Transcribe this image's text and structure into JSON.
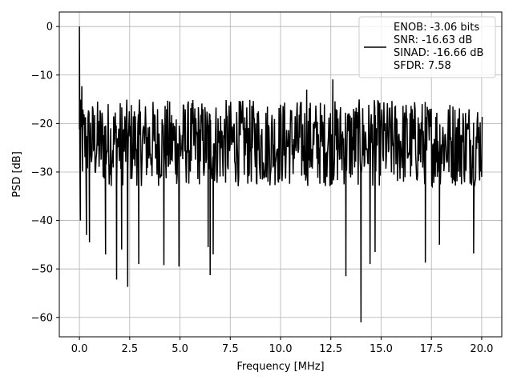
{
  "chart_data": {
    "type": "line",
    "title": "",
    "xlabel": "Frequency [MHz]",
    "ylabel": "PSD [dB]",
    "xlim": [
      -1.0,
      21.0
    ],
    "ylim": [
      -64.0,
      3.0
    ],
    "x_ticks": [
      0.0,
      2.5,
      5.0,
      7.5,
      10.0,
      12.5,
      15.0,
      17.5,
      20.0
    ],
    "x_tick_labels": [
      "0.0",
      "2.5",
      "5.0",
      "7.5",
      "10.0",
      "12.5",
      "15.0",
      "17.5",
      "20.0"
    ],
    "y_ticks": [
      0,
      -10,
      -20,
      -30,
      -40,
      -50,
      -60
    ],
    "y_tick_labels": [
      "0",
      "−10",
      "−20",
      "−30",
      "−40",
      "−50",
      "−60"
    ],
    "grid": true,
    "legend_position": "top-right",
    "series": [
      {
        "name": "ENOB: -3.06 bits\nSNR: -16.63 dB\nSINAD: -16.66 dB\nSFDR: 7.58",
        "color": "#000000",
        "x_range": [
          0.0,
          20.0
        ],
        "sample_count": 400,
        "approx_mean_level": -24,
        "approx_spread": 9,
        "features": [
          {
            "x": 0.0,
            "y": 0.0
          },
          {
            "x": 0.05,
            "y": -40.0
          },
          {
            "x": 0.12,
            "y": -12.3
          },
          {
            "x": 0.35,
            "y": -43.0
          },
          {
            "x": 0.5,
            "y": -44.5
          },
          {
            "x": 1.3,
            "y": -47.0
          },
          {
            "x": 1.85,
            "y": -52.2
          },
          {
            "x": 2.1,
            "y": -46.0
          },
          {
            "x": 2.4,
            "y": -53.7
          },
          {
            "x": 2.95,
            "y": -49.0
          },
          {
            "x": 4.2,
            "y": -49.2
          },
          {
            "x": 4.95,
            "y": -49.5
          },
          {
            "x": 6.4,
            "y": -45.5
          },
          {
            "x": 6.5,
            "y": -51.3
          },
          {
            "x": 6.65,
            "y": -47.0
          },
          {
            "x": 11.3,
            "y": -13.0
          },
          {
            "x": 12.6,
            "y": -10.9
          },
          {
            "x": 13.25,
            "y": -51.5
          },
          {
            "x": 14.0,
            "y": -61.0
          },
          {
            "x": 14.45,
            "y": -49.0
          },
          {
            "x": 14.7,
            "y": -46.5
          },
          {
            "x": 17.2,
            "y": -48.7
          },
          {
            "x": 17.9,
            "y": -45.0
          },
          {
            "x": 19.6,
            "y": -46.8
          }
        ]
      }
    ]
  }
}
